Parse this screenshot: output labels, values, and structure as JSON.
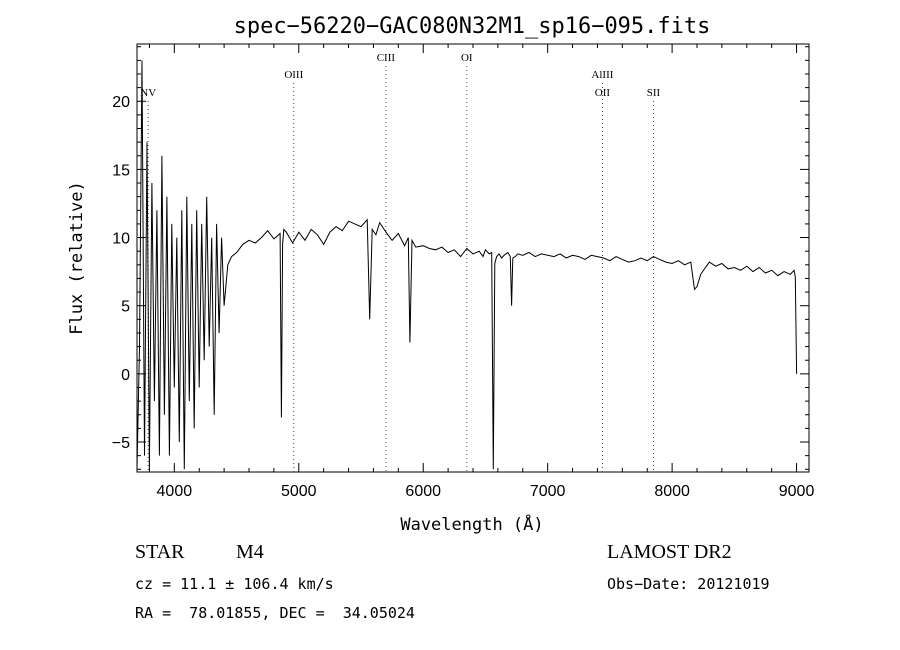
{
  "chart_data": {
    "type": "line",
    "title": "spec−56220−GAC080N32M1_sp16−095.fits",
    "xlabel": "Wavelength (Å)",
    "ylabel": "Flux (relative)",
    "xlim": [
      3700,
      9100
    ],
    "ylim": [
      -7.2,
      24.2
    ],
    "xticks": [
      4000,
      5000,
      6000,
      7000,
      8000,
      9000
    ],
    "yticks": [
      -5,
      0,
      5,
      10,
      15,
      20
    ],
    "grid": false,
    "series": [
      {
        "x": [
          3700,
          3720,
          3740,
          3760,
          3780,
          3800,
          3820,
          3840,
          3860,
          3880,
          3900,
          3920,
          3940,
          3960,
          3980,
          4000,
          4020,
          4040,
          4060,
          4080,
          4100,
          4120,
          4140,
          4160,
          4180,
          4200,
          4220,
          4240,
          4260,
          4280,
          4300,
          4320,
          4340,
          4360,
          4380,
          4400,
          4430,
          4460,
          4500,
          4550,
          4600,
          4650,
          4700,
          4750,
          4800,
          4850,
          4860,
          4870,
          4880,
          4900,
          4950,
          5000,
          5050,
          5100,
          5150,
          5200,
          5250,
          5300,
          5350,
          5400,
          5450,
          5500,
          5550,
          5570,
          5590,
          5620,
          5650,
          5700,
          5750,
          5800,
          5850,
          5880,
          5893,
          5910,
          5940,
          6000,
          6050,
          6100,
          6150,
          6200,
          6250,
          6300,
          6350,
          6400,
          6450,
          6480,
          6500,
          6530,
          6550,
          6563,
          6575,
          6590,
          6610,
          6630,
          6650,
          6680,
          6700,
          6710,
          6720,
          6740,
          6760,
          6800,
          6850,
          6900,
          6950,
          7000,
          7050,
          7100,
          7150,
          7200,
          7250,
          7300,
          7350,
          7400,
          7450,
          7500,
          7550,
          7600,
          7650,
          7700,
          7750,
          7800,
          7850,
          7900,
          7950,
          8000,
          8050,
          8100,
          8150,
          8180,
          8200,
          8230,
          8260,
          8300,
          8350,
          8400,
          8450,
          8500,
          8550,
          8600,
          8650,
          8700,
          8750,
          8800,
          8850,
          8900,
          8950,
          8980,
          8990,
          9000
        ],
        "y": [
          -7,
          2,
          23,
          -6,
          17,
          -7,
          14,
          -2,
          12,
          -6,
          16,
          -3,
          13,
          -6,
          11,
          -1,
          10,
          -5,
          12,
          -7,
          13,
          -2,
          11,
          -4,
          12,
          -1,
          11,
          1,
          13,
          2,
          10,
          -3,
          11,
          3,
          10,
          5,
          8,
          8.6,
          8.9,
          9.5,
          9.8,
          9.6,
          10,
          10.5,
          9.9,
          10.3,
          -3.2,
          9.5,
          10.6,
          10.4,
          9.6,
          10.4,
          9.8,
          10.6,
          10.2,
          9.5,
          10.4,
          10.8,
          10.5,
          11.2,
          11,
          10.8,
          11.3,
          4,
          10.6,
          10.2,
          11.1,
          10.4,
          9.8,
          10.3,
          9.4,
          10,
          2.3,
          9.8,
          9.3,
          9.4,
          9.2,
          9.1,
          9.3,
          8.9,
          9.1,
          8.6,
          9.2,
          8.8,
          9,
          8.6,
          9.1,
          8.8,
          8.9,
          -7,
          8.1,
          8.6,
          8.8,
          8.5,
          8.7,
          8.9,
          8.6,
          5,
          8.5,
          8.6,
          8.8,
          8.7,
          8.9,
          8.6,
          8.8,
          8.7,
          8.6,
          8.8,
          8.5,
          8.7,
          8.6,
          8.4,
          8.7,
          8.6,
          8.5,
          8.3,
          8.6,
          8.4,
          8.2,
          8.3,
          8.5,
          8.3,
          8.6,
          8.4,
          8.2,
          8.1,
          8.3,
          8,
          8.2,
          6.2,
          6.4,
          7.3,
          7.7,
          8.2,
          7.9,
          8.1,
          7.7,
          7.8,
          7.6,
          7.9,
          7.5,
          7.8,
          7.4,
          7.6,
          7.2,
          7.5,
          7.3,
          7.6,
          7.1,
          0
        ]
      }
    ],
    "lines": [
      {
        "label": "NV",
        "x": 3790
      },
      {
        "label": "OIII",
        "x": 4960
      },
      {
        "label": "CIII",
        "x": 5700
      },
      {
        "label": "OI",
        "x": 6350
      },
      {
        "label": "AlIII",
        "x": 7440
      },
      {
        "label": "OII",
        "x": 7440
      },
      {
        "label": "SII",
        "x": 7850
      }
    ]
  },
  "info": {
    "class_label": "STAR",
    "subclass": "M4",
    "survey": "LAMOST DR2",
    "cz_text": "cz = 11.1 ± 106.4 km/s",
    "obs_date": "Obs−Date: 20121019",
    "coords": "RA =  78.01855, DEC =  34.05024"
  }
}
